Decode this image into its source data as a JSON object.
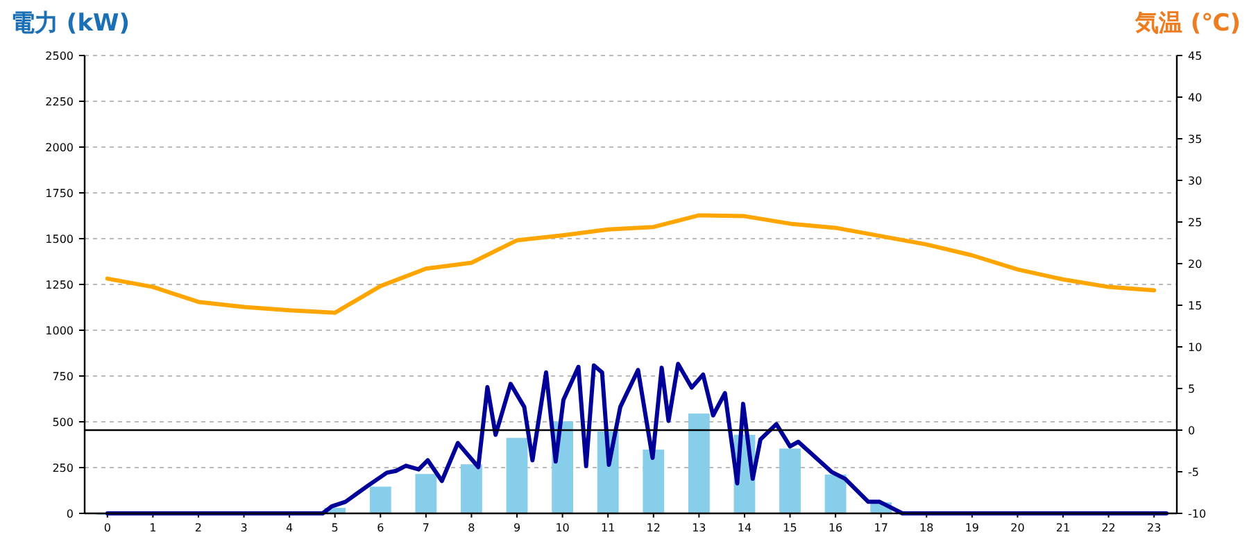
{
  "chart_data": {
    "type": "bar",
    "ylabel": "電力 (kW)",
    "y2label": "気温 (℃)",
    "x": [
      0,
      1,
      2,
      3,
      4,
      5,
      6,
      7,
      8,
      9,
      10,
      11,
      12,
      13,
      14,
      15,
      16,
      17,
      18,
      19,
      20,
      21,
      22,
      23
    ],
    "xlim": [
      -0.5,
      23.5
    ],
    "xticks": [
      0,
      1,
      2,
      3,
      4,
      5,
      6,
      7,
      8,
      9,
      10,
      11,
      12,
      13,
      14,
      15,
      16,
      17,
      18,
      19,
      20,
      21,
      22,
      23
    ],
    "series": [
      {
        "color": "#87ceeb",
        "values": [
          0,
          0,
          0,
          0,
          0,
          30,
          146,
          215,
          268,
          412,
          503,
          447,
          348,
          545,
          429,
          354,
          212,
          60,
          0,
          0,
          0,
          0,
          0,
          0
        ]
      },
      {
        "type": "line",
        "color": "#000099",
        "x": [
          0,
          4.73,
          4.93,
          5.23,
          5.73,
          6.14,
          6.34,
          6.56,
          6.84,
          7.04,
          7.35,
          7.7,
          8.15,
          8.35,
          8.53,
          8.86,
          9.16,
          9.34,
          9.64,
          9.85,
          10.02,
          10.35,
          10.52,
          10.69,
          10.87,
          11.02,
          11.27,
          11.66,
          11.98,
          12.18,
          12.33,
          12.54,
          12.84,
          13.09,
          13.31,
          13.57,
          13.84,
          13.97,
          14.18,
          14.35,
          14.7,
          15.0,
          15.18,
          15.91,
          16.21,
          16.72,
          16.97,
          17.47,
          23.27
        ],
        "values": [
          0,
          0,
          38,
          63,
          152,
          222,
          232,
          260,
          240,
          290,
          177,
          384,
          253,
          689,
          429,
          707,
          581,
          290,
          770,
          283,
          619,
          800,
          258,
          808,
          770,
          265,
          581,
          783,
          303,
          795,
          505,
          816,
          687,
          758,
          535,
          657,
          164,
          598,
          189,
          404,
          487,
          366,
          391,
          227,
          189,
          63,
          63,
          0,
          0
        ]
      },
      {
        "type": "line",
        "color": "#ffa500",
        "axis": "y2",
        "values": [
          18.2,
          17.2,
          15.4,
          14.8,
          14.4,
          14.1,
          17.3,
          19.4,
          20.1,
          22.8,
          23.4,
          24.1,
          24.4,
          25.8,
          25.7,
          24.8,
          24.3,
          23.3,
          22.3,
          21.0,
          19.3,
          18.1,
          17.2,
          16.8
        ]
      }
    ],
    "ylim": [
      0,
      2500
    ],
    "yticks": [
      0,
      250,
      500,
      750,
      1000,
      1250,
      1500,
      1750,
      2000,
      2250,
      2500
    ],
    "y2lim": [
      -10,
      45
    ],
    "y2ticks": [
      -10,
      -5,
      0,
      5,
      10,
      15,
      20,
      25,
      30,
      35,
      40,
      45
    ],
    "ref_lines": [
      {
        "axis": "y2",
        "value": 0,
        "color": "#000000"
      }
    ],
    "grid": "y"
  }
}
